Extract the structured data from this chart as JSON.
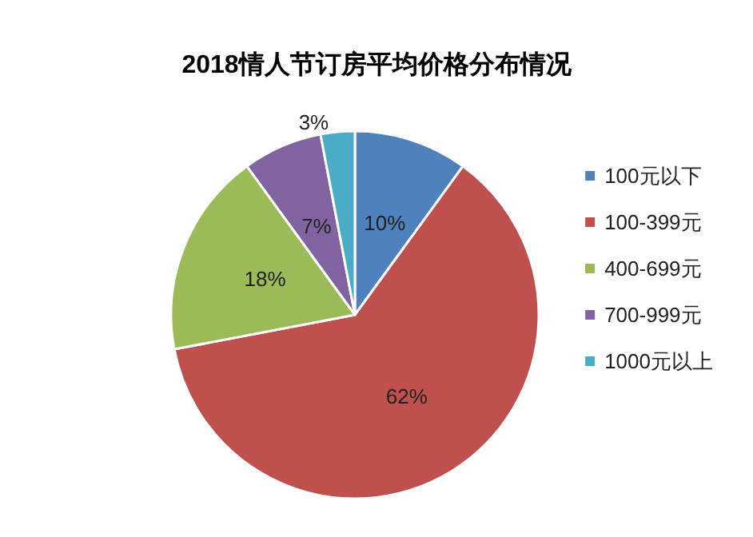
{
  "chart_data": {
    "type": "pie",
    "title": "2018情人节订房平均价格分布情况",
    "categories": [
      "100元以下",
      "100-399元",
      "400-699元",
      "700-999元",
      "1000元以上"
    ],
    "values": [
      10,
      62,
      18,
      7,
      3
    ],
    "value_labels": [
      "10%",
      "62%",
      "18%",
      "7%",
      "3%"
    ],
    "colors": [
      "#4f81bd",
      "#c0504d",
      "#9bbb59",
      "#8064a2",
      "#4bacc6"
    ],
    "legend": "right"
  }
}
